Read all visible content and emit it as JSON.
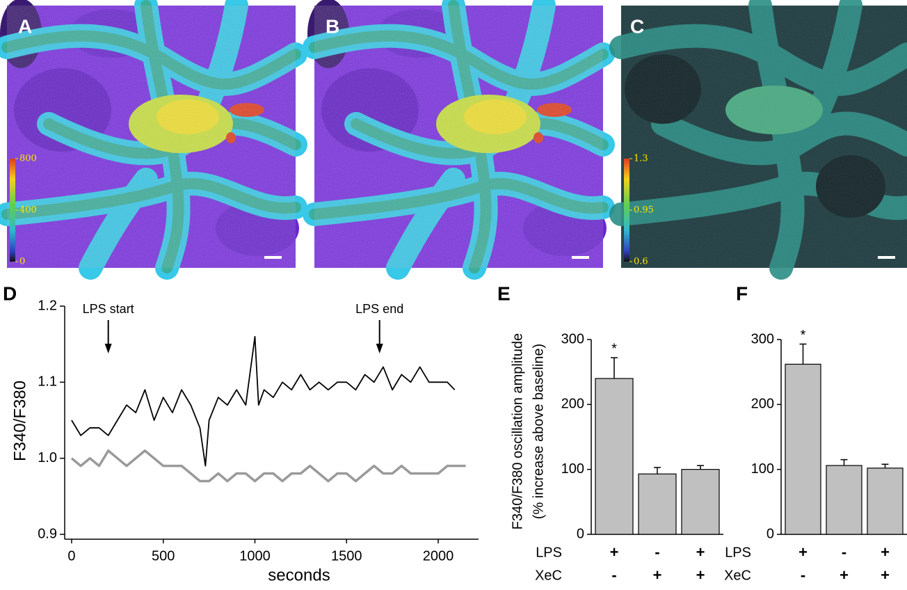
{
  "panels": [
    {
      "label": "A",
      "colorbar": {
        "range": [
          0,
          800
        ],
        "ticks": [
          800,
          400,
          0
        ]
      }
    },
    {
      "label": "B"
    },
    {
      "label": "C",
      "colorbar": {
        "range": [
          0.6,
          1.3
        ],
        "ticks": [
          1.3,
          0.95,
          0.6
        ]
      }
    }
  ],
  "chart_data": [
    {
      "type": "line",
      "panel_label": "D",
      "xlabel": "seconds",
      "ylabel": "F340/F380",
      "xlim": [
        -20,
        2220
      ],
      "ylim": [
        0.9,
        1.2
      ],
      "xticks": [
        0,
        500,
        1000,
        1500,
        2000
      ],
      "yticks": [
        {
          "value": 0.9,
          "label": "0.9"
        },
        {
          "value": 1,
          "label": "1.0"
        },
        1.1,
        1.2
      ],
      "annotations": [
        {
          "text": "LPS start",
          "x": 200
        },
        {
          "text": "LPS end",
          "x": 1680
        }
      ],
      "series": [
        {
          "color": "#000000",
          "x": [
            0,
            50,
            100,
            150,
            200,
            250,
            300,
            350,
            400,
            450,
            500,
            550,
            600,
            650,
            700,
            730,
            750,
            800,
            850,
            900,
            950,
            1000,
            1020,
            1050,
            1100,
            1150,
            1200,
            1250,
            1300,
            1350,
            1400,
            1450,
            1500,
            1550,
            1600,
            1650,
            1700,
            1750,
            1800,
            1850,
            1900,
            1950,
            2000,
            2050,
            2090
          ],
          "values": [
            1.05,
            1.03,
            1.04,
            1.04,
            1.03,
            1.05,
            1.07,
            1.06,
            1.09,
            1.05,
            1.08,
            1.06,
            1.09,
            1.07,
            1.04,
            0.99,
            1.05,
            1.08,
            1.07,
            1.09,
            1.07,
            1.16,
            1.07,
            1.09,
            1.08,
            1.1,
            1.09,
            1.11,
            1.09,
            1.1,
            1.09,
            1.1,
            1.1,
            1.09,
            1.11,
            1.1,
            1.12,
            1.09,
            1.11,
            1.1,
            1.12,
            1.1,
            1.1,
            1.1,
            1.09
          ]
        },
        {
          "color": "#9a9a9a",
          "x": [
            0,
            50,
            100,
            150,
            200,
            250,
            300,
            350,
            400,
            450,
            500,
            550,
            600,
            650,
            700,
            750,
            800,
            850,
            900,
            950,
            1000,
            1050,
            1100,
            1150,
            1200,
            1250,
            1300,
            1350,
            1400,
            1450,
            1500,
            1550,
            1600,
            1650,
            1700,
            1750,
            1800,
            1850,
            1900,
            1950,
            2000,
            2050,
            2100,
            2150
          ],
          "values": [
            1,
            0.99,
            1,
            0.99,
            1.01,
            1,
            0.99,
            1,
            1.01,
            1,
            0.99,
            0.99,
            0.99,
            0.98,
            0.97,
            0.97,
            0.98,
            0.97,
            0.98,
            0.98,
            0.97,
            0.98,
            0.98,
            0.97,
            0.98,
            0.98,
            0.99,
            0.98,
            0.97,
            0.98,
            0.98,
            0.97,
            0.98,
            0.99,
            0.98,
            0.98,
            0.99,
            0.98,
            0.98,
            0.98,
            0.98,
            0.99,
            0.99,
            0.99
          ]
        }
      ]
    },
    {
      "type": "bar",
      "panel_label": "E",
      "ylabel": [
        "F340/F380 oscillation amplitude",
        "(% increase above baseline)"
      ],
      "row_labels": [
        "LPS",
        "XeC"
      ],
      "categories": [
        [
          "+",
          "-"
        ],
        [
          "-",
          "+"
        ],
        [
          "+",
          "+"
        ]
      ],
      "values": [
        240,
        93,
        100
      ],
      "errors": [
        32,
        10,
        6
      ],
      "color": "#c0c0c0",
      "annotations": [
        {
          "text": "*",
          "category": 0
        }
      ],
      "ylim": [
        0,
        300
      ],
      "yticks": [
        0,
        100,
        200,
        300
      ]
    },
    {
      "type": "bar",
      "panel_label": "F",
      "row_labels": [
        "LPS",
        "XeC"
      ],
      "categories": [
        [
          "+",
          "-"
        ],
        [
          "-",
          "+"
        ],
        [
          "+",
          "+"
        ]
      ],
      "values": [
        262,
        106,
        102
      ],
      "errors": [
        31,
        9,
        6
      ],
      "color": "#c0c0c0",
      "annotations": [
        {
          "text": "*",
          "category": 0
        }
      ],
      "ylim": [
        0,
        300
      ],
      "yticks": [
        0,
        100,
        200,
        300
      ]
    }
  ]
}
